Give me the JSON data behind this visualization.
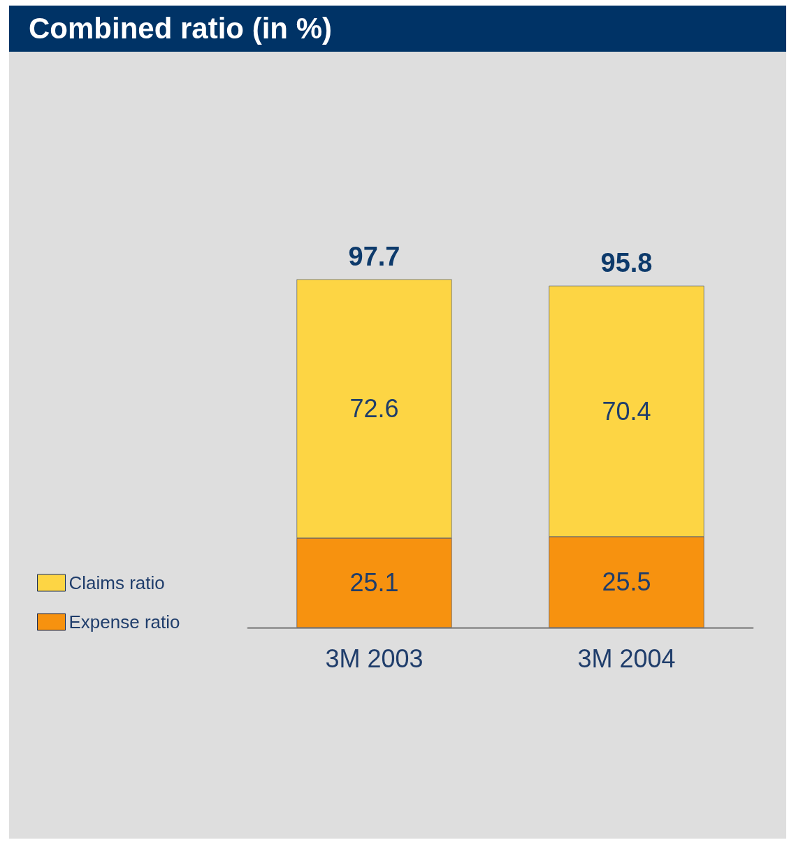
{
  "chart_data": {
    "type": "bar",
    "title": "Combined ratio (in %)",
    "categories": [
      "3M 2003",
      "3M 2004"
    ],
    "stacked": true,
    "data_labels": true,
    "legend": "left",
    "series": [
      {
        "name": "Expense ratio",
        "color": "#f7920f",
        "values": [
          25.1,
          25.5
        ]
      },
      {
        "name": "Claims ratio",
        "color": "#fdd544",
        "values": [
          72.6,
          70.4
        ]
      }
    ],
    "totals": [
      "97.7",
      "95.8"
    ]
  }
}
